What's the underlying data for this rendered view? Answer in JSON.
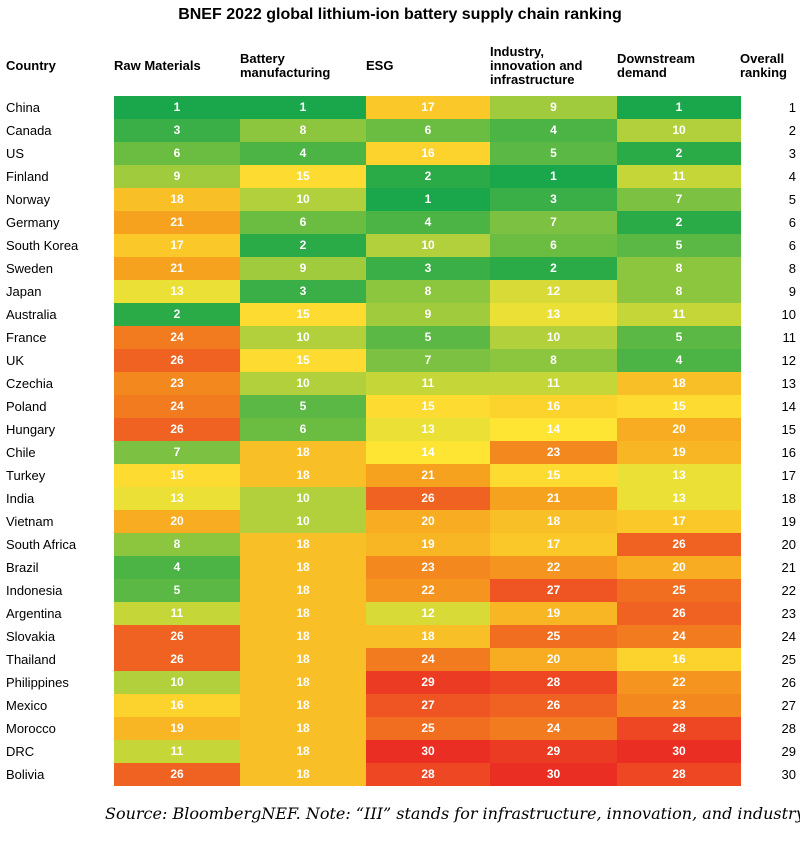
{
  "chart_data": {
    "type": "table",
    "title": "BNEF 2022 global lithium-ion battery supply chain ranking",
    "columns": [
      [
        "Country"
      ],
      [
        "Raw Materials"
      ],
      [
        "Battery",
        "manufacturing"
      ],
      [
        "ESG"
      ],
      [
        "Industry,",
        "innovation and",
        "infrastructure"
      ],
      [
        "Downstream",
        "demand"
      ],
      [
        "Overall",
        "ranking"
      ]
    ],
    "rows": [
      {
        "country": "China",
        "scores": [
          1,
          1,
          17,
          9,
          1
        ],
        "overall": 1
      },
      {
        "country": "Canada",
        "scores": [
          3,
          8,
          6,
          4,
          10
        ],
        "overall": 2
      },
      {
        "country": "US",
        "scores": [
          6,
          4,
          16,
          5,
          2
        ],
        "overall": 3
      },
      {
        "country": "Finland",
        "scores": [
          9,
          15,
          2,
          1,
          11
        ],
        "overall": 4
      },
      {
        "country": "Norway",
        "scores": [
          18,
          10,
          1,
          3,
          7
        ],
        "overall": 5
      },
      {
        "country": "Germany",
        "scores": [
          21,
          6,
          4,
          7,
          2
        ],
        "overall": 6
      },
      {
        "country": "South Korea",
        "scores": [
          17,
          2,
          10,
          6,
          5
        ],
        "overall": 6
      },
      {
        "country": "Sweden",
        "scores": [
          21,
          9,
          3,
          2,
          8
        ],
        "overall": 8
      },
      {
        "country": "Japan",
        "scores": [
          13,
          3,
          8,
          12,
          8
        ],
        "overall": 9
      },
      {
        "country": "Australia",
        "scores": [
          2,
          15,
          9,
          13,
          11
        ],
        "overall": 10
      },
      {
        "country": "France",
        "scores": [
          24,
          10,
          5,
          10,
          5
        ],
        "overall": 11
      },
      {
        "country": "UK",
        "scores": [
          26,
          15,
          7,
          8,
          4
        ],
        "overall": 12
      },
      {
        "country": "Czechia",
        "scores": [
          23,
          10,
          11,
          11,
          18
        ],
        "overall": 13
      },
      {
        "country": "Poland",
        "scores": [
          24,
          5,
          15,
          16,
          15
        ],
        "overall": 14
      },
      {
        "country": "Hungary",
        "scores": [
          26,
          6,
          13,
          14,
          20
        ],
        "overall": 15
      },
      {
        "country": "Chile",
        "scores": [
          7,
          18,
          14,
          23,
          19
        ],
        "overall": 16
      },
      {
        "country": "Turkey",
        "scores": [
          15,
          18,
          21,
          15,
          13
        ],
        "overall": 17
      },
      {
        "country": "India",
        "scores": [
          13,
          10,
          26,
          21,
          13
        ],
        "overall": 18
      },
      {
        "country": "Vietnam",
        "scores": [
          20,
          10,
          20,
          18,
          17
        ],
        "overall": 19
      },
      {
        "country": "South Africa",
        "scores": [
          8,
          18,
          19,
          17,
          26
        ],
        "overall": 20
      },
      {
        "country": "Brazil",
        "scores": [
          4,
          18,
          23,
          22,
          20
        ],
        "overall": 21
      },
      {
        "country": "Indonesia",
        "scores": [
          5,
          18,
          22,
          27,
          25
        ],
        "overall": 22
      },
      {
        "country": "Argentina",
        "scores": [
          11,
          18,
          12,
          19,
          26
        ],
        "overall": 23
      },
      {
        "country": "Slovakia",
        "scores": [
          26,
          18,
          18,
          25,
          24
        ],
        "overall": 24
      },
      {
        "country": "Thailand",
        "scores": [
          26,
          18,
          24,
          20,
          16
        ],
        "overall": 25
      },
      {
        "country": "Philippines",
        "scores": [
          10,
          18,
          29,
          28,
          22
        ],
        "overall": 26
      },
      {
        "country": "Mexico",
        "scores": [
          16,
          18,
          27,
          26,
          23
        ],
        "overall": 27
      },
      {
        "country": "Morocco",
        "scores": [
          19,
          18,
          25,
          24,
          28
        ],
        "overall": 28
      },
      {
        "country": "DRC",
        "scores": [
          11,
          18,
          30,
          29,
          30
        ],
        "overall": 29
      },
      {
        "country": "Bolivia",
        "scores": [
          26,
          18,
          28,
          30,
          28
        ],
        "overall": 30
      }
    ],
    "color_scale": {
      "best": "#1aa64a",
      "good": "#8cc63f",
      "mid": "#fee533",
      "poor": "#f6a21e",
      "worst": "#ea2e24"
    }
  },
  "source": "Source: BloombergNEF. Note: “III” stands for infrastructure, innovation, and industry."
}
